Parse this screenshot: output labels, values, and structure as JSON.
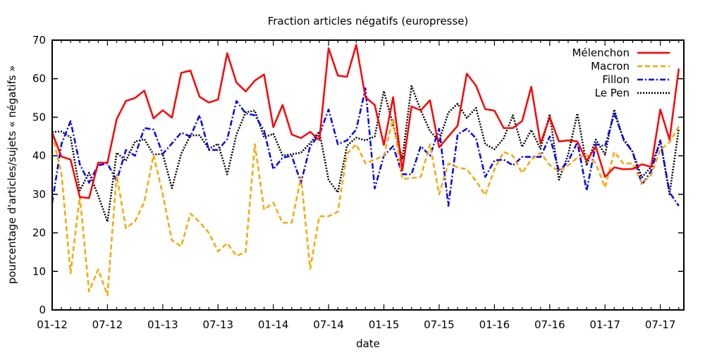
{
  "chart_data": {
    "type": "line",
    "title": "Fraction articles négatifs (europresse)",
    "xlabel": "date",
    "ylabel": "pourcentage d'articles/sujets « négatifs »",
    "ylim": [
      0,
      70
    ],
    "yticks": [
      0,
      10,
      20,
      30,
      40,
      50,
      60,
      70
    ],
    "xtick_labels": [
      "01-12",
      "07-12",
      "01-13",
      "07-13",
      "01-14",
      "07-14",
      "01-15",
      "07-15",
      "01-16",
      "07-16",
      "01-17",
      "07-17"
    ],
    "legend_position": "top-right",
    "grid": false,
    "series": [
      {
        "name": "Mélenchon",
        "color": "#ff0000",
        "dash": "solid",
        "values": [
          46,
          39.8,
          39,
          29.3,
          29,
          38.2,
          38.2,
          49.5,
          54.2,
          55,
          56.9,
          49.7,
          51.8,
          49.9,
          61.5,
          62.1,
          55.3,
          53.8,
          54.6,
          66.6,
          59,
          56.7,
          59.5,
          61.1,
          47.4,
          53.2,
          45.5,
          44.6,
          46.2,
          44.1,
          67.9,
          60.8,
          60.5,
          68.8,
          55.2,
          53.2,
          42.8,
          55.2,
          36.2,
          52.8,
          51.8,
          54.4,
          42.2,
          45,
          47.8,
          61.3,
          58.2,
          52.1,
          51.7,
          47.2,
          47.2,
          49,
          57.9,
          43.2,
          50,
          43.7,
          44,
          43.7,
          38.7,
          42.4,
          34.5,
          37,
          36.5,
          36.6,
          37.8,
          37.1,
          52,
          44.2,
          62.6
        ]
      },
      {
        "name": "Macron",
        "color": "#ffa500",
        "dash": "dashed",
        "values": [
          45.5,
          35.5,
          9.5,
          29.5,
          4.8,
          10.5,
          3.8,
          35,
          21.2,
          23,
          28,
          40.2,
          30,
          18,
          16.5,
          25,
          22.8,
          20,
          15.2,
          17.3,
          14,
          15,
          43,
          26,
          27.8,
          22.6,
          22.6,
          34.5,
          10.7,
          24.3,
          24.3,
          25.5,
          40.5,
          43,
          38,
          39,
          40,
          49.5,
          34,
          34.2,
          34.5,
          43,
          30,
          38,
          37,
          36.5,
          33.5,
          29.8,
          36.5,
          41,
          40,
          35.5,
          39,
          40.8,
          37.6,
          36,
          37.5,
          39.5,
          40.3,
          38,
          31.8,
          41,
          38,
          38,
          32.8,
          35,
          41.6,
          43.5,
          47.6
        ]
      },
      {
        "name": "Fillon",
        "color": "#0000ff",
        "dash": "dashdot",
        "values": [
          27.8,
          43,
          49,
          37.8,
          33,
          37.5,
          38,
          33.5,
          41.5,
          40,
          47.2,
          46.8,
          40.5,
          43.2,
          46,
          45,
          50.5,
          41.5,
          41.5,
          44.3,
          54.2,
          51,
          50.5,
          46.5,
          36.5,
          39.5,
          40,
          33,
          42.5,
          45.5,
          52,
          43,
          44,
          46.8,
          57.5,
          31.5,
          40,
          42.5,
          35.2,
          35.2,
          42.5,
          40,
          47,
          27,
          45.5,
          47,
          44.5,
          34.5,
          38.8,
          39,
          37.5,
          39.7,
          39.7,
          39.7,
          45,
          36,
          38.5,
          43.5,
          31,
          43,
          42.5,
          51,
          44.5,
          41,
          32.5,
          36,
          44,
          30.5,
          27
        ]
      },
      {
        "name": "Le Pen",
        "color": "#000000",
        "dash": "dotted",
        "values": [
          46.2,
          46.3,
          44.8,
          31,
          35.6,
          29.7,
          22.9,
          40.8,
          38.7,
          43.7,
          44.3,
          40.3,
          40.5,
          31.6,
          40.5,
          45.3,
          45.3,
          41.8,
          43.1,
          35.2,
          45.5,
          51.3,
          51.7,
          44.8,
          45.7,
          40.1,
          40.4,
          40.8,
          43.3,
          46.3,
          33.7,
          30.5,
          42.6,
          44.7,
          44,
          45,
          56.8,
          48,
          39.3,
          58.1,
          51.8,
          46.4,
          43.9,
          51.2,
          53.5,
          49.8,
          52.4,
          43,
          41.7,
          44.5,
          50.5,
          42.3,
          46.7,
          41.8,
          50.8,
          33.8,
          40.3,
          51,
          37.5,
          44.2,
          40.3,
          52,
          44.1,
          41,
          34.4,
          37.1,
          44,
          30,
          47
        ]
      }
    ]
  }
}
